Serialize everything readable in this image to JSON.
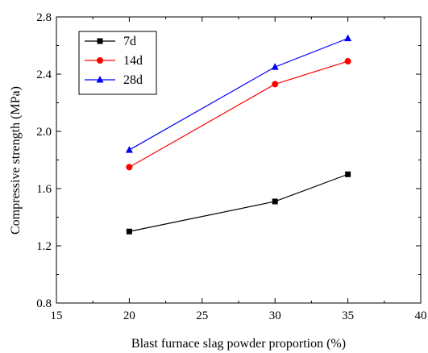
{
  "chart_data": {
    "type": "line",
    "xlabel": "Blast furnace slag powder proportion (%)",
    "ylabel": "Compressive strength (MPa)",
    "xlim": [
      15,
      40
    ],
    "ylim": [
      0.8,
      2.8
    ],
    "xticks": [
      "15",
      "20",
      "25",
      "30",
      "35",
      "40"
    ],
    "yticks": [
      "0.8",
      "1.2",
      "1.6",
      "2.0",
      "2.4",
      "2.8"
    ],
    "x": [
      20,
      30,
      35
    ],
    "series": [
      {
        "name": "7d",
        "values": [
          1.3,
          1.51,
          1.7
        ],
        "color": "#000000",
        "marker": "square"
      },
      {
        "name": "14d",
        "values": [
          1.75,
          2.33,
          2.49
        ],
        "color": "#ff0000",
        "marker": "circle"
      },
      {
        "name": "28d",
        "values": [
          1.87,
          2.45,
          2.65
        ],
        "color": "#0000ff",
        "marker": "triangle"
      }
    ],
    "legend_position": "top-left",
    "grid": false
  }
}
